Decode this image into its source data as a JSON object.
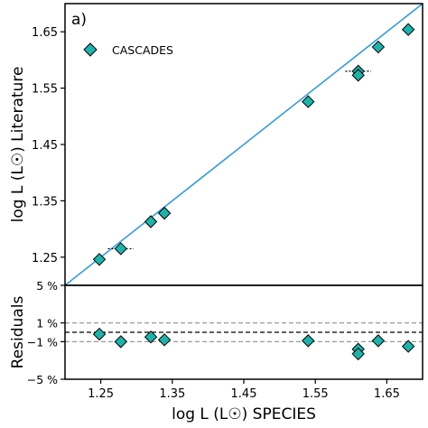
{
  "chart_data": [
    {
      "panel": "main",
      "type": "scatter",
      "panel_label": "a)",
      "xlim": [
        1.2,
        1.7
      ],
      "ylim": [
        1.2,
        1.7
      ],
      "ylabel": "log L (L☉) Literature",
      "yticks": [
        1.25,
        1.35,
        1.45,
        1.55,
        1.65
      ],
      "ytick_labels": [
        "1.25",
        "1.35",
        "1.45",
        "1.55",
        "1.65"
      ],
      "legend": {
        "label": "CASCADES",
        "position": "top-left"
      },
      "marker_color": "#20b2aa",
      "line_color": "#3a9ad9",
      "reference_line": "y = x",
      "series": [
        {
          "name": "CASCADES",
          "points": [
            {
              "x": 1.248,
              "y": 1.246,
              "xerr": 0.004
            },
            {
              "x": 1.278,
              "y": 1.265,
              "xerr": 0.018
            },
            {
              "x": 1.32,
              "y": 1.313,
              "xerr": 0.004
            },
            {
              "x": 1.339,
              "y": 1.328,
              "xerr": 0.004
            },
            {
              "x": 1.54,
              "y": 1.526,
              "xerr": 0.003
            },
            {
              "x": 1.61,
              "y": 1.58,
              "xerr": 0.018
            },
            {
              "x": 1.61,
              "y": 1.573,
              "xerr": 0.003
            },
            {
              "x": 1.638,
              "y": 1.623,
              "xerr": 0.004
            },
            {
              "x": 1.68,
              "y": 1.654,
              "xerr": 0.006
            }
          ]
        }
      ]
    },
    {
      "panel": "residuals",
      "type": "scatter",
      "xlabel": "log L (L☉) SPECIES",
      "ylabel": "Residuals",
      "xticks": [
        1.25,
        1.35,
        1.45,
        1.55,
        1.65
      ],
      "xtick_labels": [
        "1.25",
        "1.35",
        "1.45",
        "1.55",
        "1.65"
      ],
      "ylim": [
        -5,
        5
      ],
      "ytick_labels": [
        "5 %",
        "1 %",
        "−1 %",
        "−5 %"
      ],
      "ytick_values": [
        5,
        1,
        -1,
        -5
      ],
      "reference_lines": [
        {
          "y": 1,
          "style": "dashed",
          "color": "#999999"
        },
        {
          "y": 0,
          "style": "dashed",
          "color": "#000000"
        },
        {
          "y": -1,
          "style": "dashed",
          "color": "#999999"
        }
      ],
      "series": [
        {
          "name": "CASCADES",
          "points": [
            {
              "x": 1.248,
              "y": -0.2
            },
            {
              "x": 1.278,
              "y": -1.0
            },
            {
              "x": 1.32,
              "y": -0.5
            },
            {
              "x": 1.339,
              "y": -0.8
            },
            {
              "x": 1.54,
              "y": -0.9
            },
            {
              "x": 1.61,
              "y": -1.8
            },
            {
              "x": 1.61,
              "y": -2.3
            },
            {
              "x": 1.638,
              "y": -0.9
            },
            {
              "x": 1.68,
              "y": -1.5
            }
          ]
        }
      ]
    }
  ]
}
